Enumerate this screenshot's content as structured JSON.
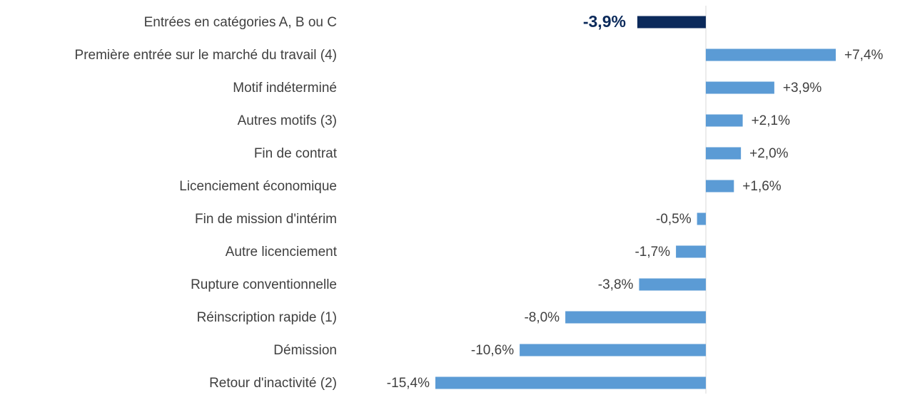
{
  "chart_data": {
    "type": "bar",
    "orientation": "horizontal",
    "categories": [
      "Entrées en catégories A, B ou C",
      "Première entrée sur le marché du travail (4)",
      "Motif indéterminé",
      "Autres motifs (3)",
      "Fin de contrat",
      "Licenciement économique",
      "Fin de mission d'intérim",
      "Autre licenciement",
      "Rupture conventionnelle",
      "Réinscription rapide (1)",
      "Démission",
      "Retour d'inactivité (2)"
    ],
    "values": [
      -3.9,
      7.4,
      3.9,
      2.1,
      2.0,
      1.6,
      -0.5,
      -1.7,
      -3.8,
      -8.0,
      -10.6,
      -15.4
    ],
    "value_labels": [
      "-3,9%",
      "+7,4%",
      "+3,9%",
      "+2,1%",
      "+2,0%",
      "+1,6%",
      "-0,5%",
      "-1,7%",
      "-3,8%",
      "-8,0%",
      "-10,6%",
      "-15,4%"
    ],
    "colors": [
      "#0b2a5b",
      "#5b9bd5",
      "#5b9bd5",
      "#5b9bd5",
      "#5b9bd5",
      "#5b9bd5",
      "#5b9bd5",
      "#5b9bd5",
      "#5b9bd5",
      "#5b9bd5",
      "#5b9bd5",
      "#5b9bd5"
    ]
  }
}
